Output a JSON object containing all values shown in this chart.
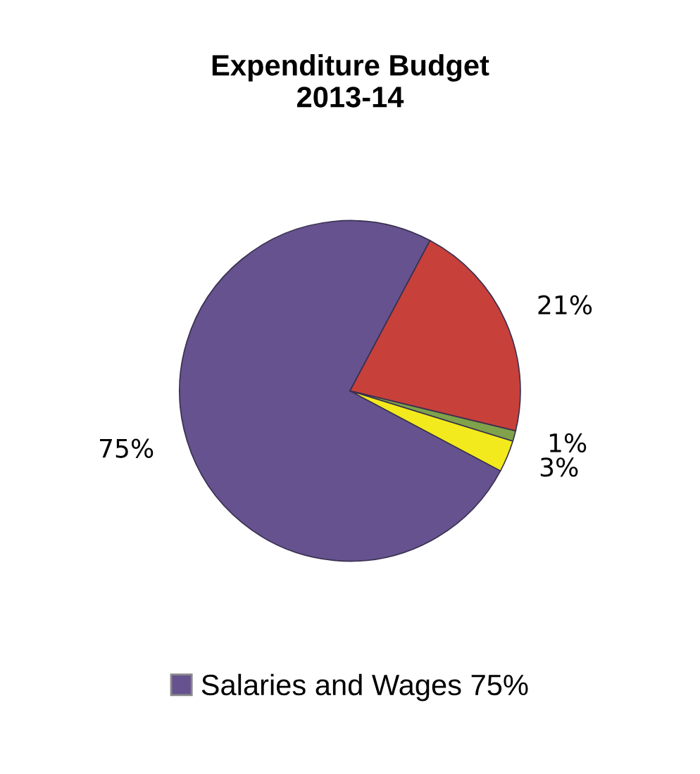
{
  "chart_data": {
    "type": "pie",
    "title": "Expenditure Budget\n2013-14",
    "categories": [
      "Salaries and Wages 75%",
      null,
      null,
      null
    ],
    "values": [
      75,
      21,
      1,
      3
    ],
    "colors": [
      "#65528f",
      "#c8403a",
      "#7fa24a",
      "#f2ea1c"
    ],
    "value_labels": [
      "75%",
      "21%",
      "1%",
      "3%"
    ],
    "legend": "bottom"
  }
}
